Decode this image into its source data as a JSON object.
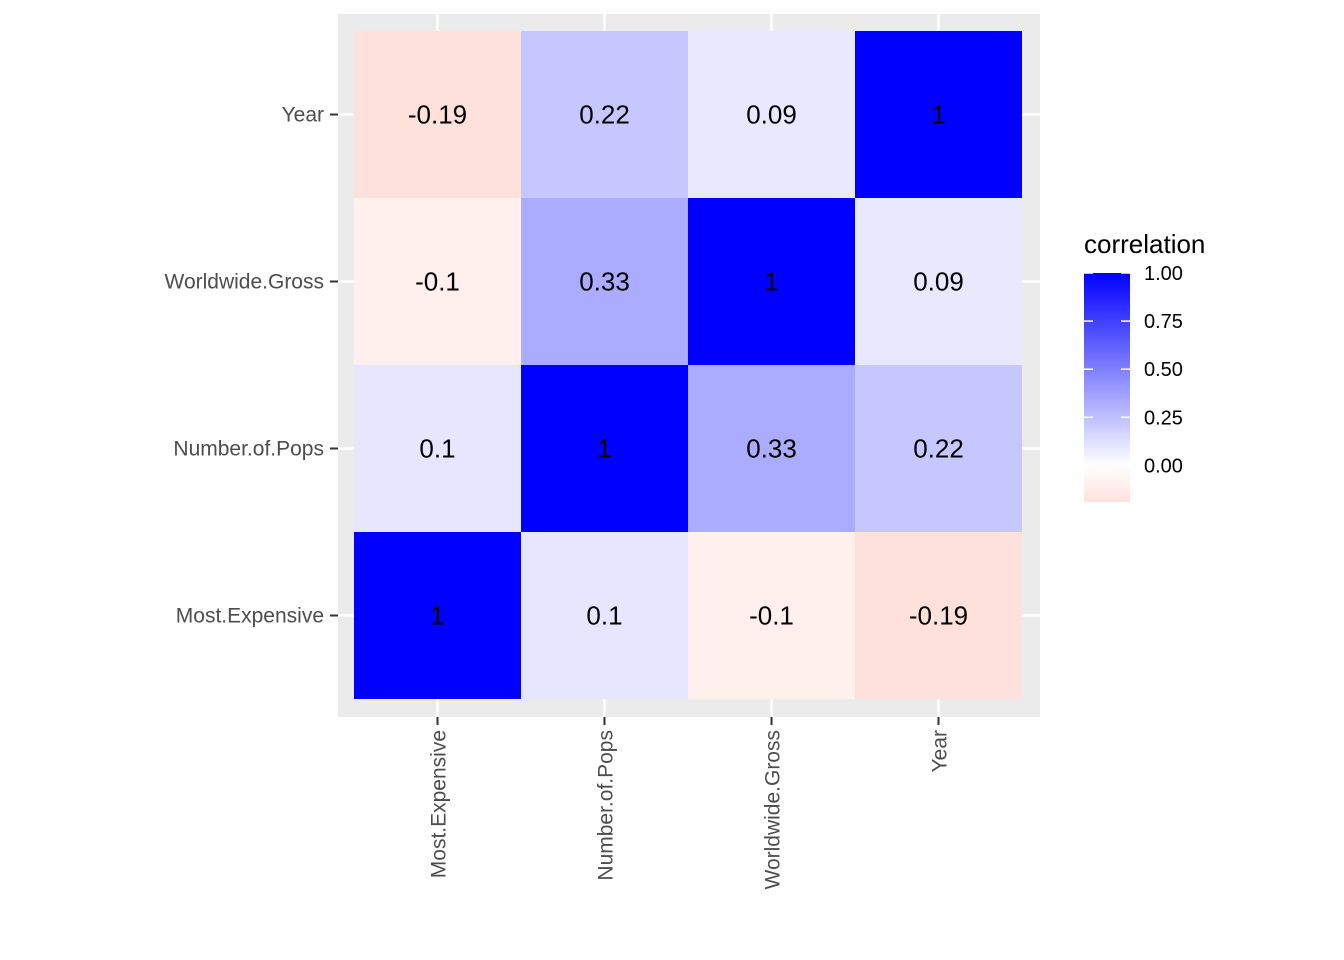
{
  "chart_data": {
    "type": "heatmap",
    "x_categories": [
      "Most.Expensive",
      "Number.of.Pops",
      "Worldwide.Gross",
      "Year"
    ],
    "y_categories": [
      "Most.Expensive",
      "Number.of.Pops",
      "Worldwide.Gross",
      "Year"
    ],
    "matrix": [
      [
        1,
        0.1,
        -0.1,
        -0.19
      ],
      [
        0.1,
        1,
        0.33,
        0.22
      ],
      [
        -0.1,
        0.33,
        1,
        0.09
      ],
      [
        -0.19,
        0.22,
        0.09,
        1
      ]
    ],
    "cell_labels": [
      [
        "1",
        "0.1",
        "-0.1",
        "-0.19"
      ],
      [
        "0.1",
        "1",
        "0.33",
        "0.22"
      ],
      [
        "-0.1",
        "0.33",
        "1",
        "0.09"
      ],
      [
        "-0.19",
        "0.22",
        "0.09",
        "1"
      ]
    ],
    "legend": {
      "title": "correlation",
      "ticks": [
        1.0,
        0.75,
        0.5,
        0.25,
        0.0
      ],
      "tick_labels": [
        "1.00",
        "0.75",
        "0.50",
        "0.25",
        "0.00"
      ],
      "range": [
        -0.19,
        1
      ],
      "placement": "right"
    },
    "colors": {
      "low": "#ff6347",
      "mid": "#ffffff",
      "high": "#0000ff",
      "panel_background": "#ebebeb",
      "grid": "#ffffff"
    },
    "grid": true
  }
}
